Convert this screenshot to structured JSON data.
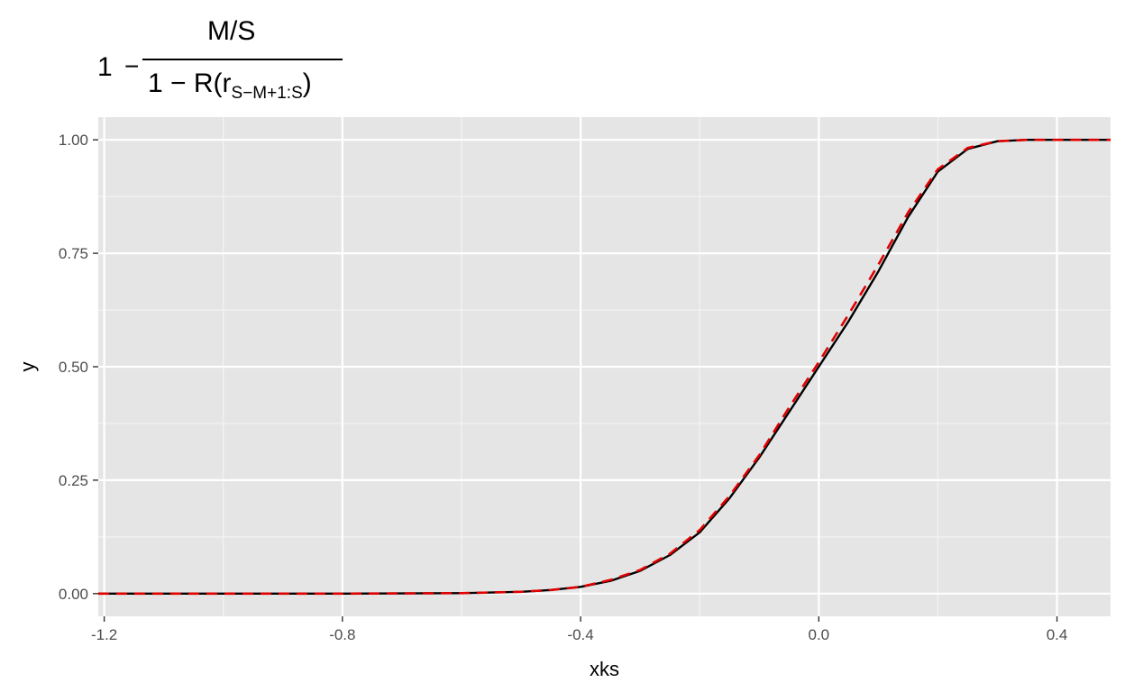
{
  "chart_data": {
    "type": "line",
    "title": {
      "one": "1",
      "minus": "−",
      "numerator": "M/S",
      "denominator_main": "1 − R(r",
      "denominator_sub": "S−M+1:S",
      "denominator_close": ")"
    },
    "xlabel": "xks",
    "ylabel": "y",
    "xlim": [
      -1.21,
      0.49
    ],
    "ylim": [
      -0.05,
      1.05
    ],
    "x_ticks": [
      -1.2,
      -0.8,
      -0.4,
      0.0,
      0.4
    ],
    "x_tick_labels": [
      "-1.2",
      "-0.8",
      "-0.4",
      "0.0",
      "0.4"
    ],
    "y_ticks": [
      0,
      0.25,
      0.5,
      0.75,
      1.0
    ],
    "y_tick_labels": [
      "0.00",
      "0.25",
      "0.50",
      "0.75",
      "1.00"
    ],
    "grid": true,
    "legend": "none",
    "x": [
      -1.21,
      -0.8,
      -0.6,
      -0.5,
      -0.45,
      -0.4,
      -0.35,
      -0.3,
      -0.25,
      -0.2,
      -0.15,
      -0.1,
      -0.05,
      0.0,
      0.05,
      0.1,
      0.15,
      0.2,
      0.25,
      0.3,
      0.35,
      0.4,
      0.49
    ],
    "series": [
      {
        "color": "#000000",
        "style": "solid",
        "values": [
          0.0,
          0.0,
          0.001,
          0.004,
          0.008,
          0.015,
          0.028,
          0.05,
          0.085,
          0.135,
          0.21,
          0.3,
          0.4,
          0.5,
          0.6,
          0.71,
          0.83,
          0.93,
          0.98,
          0.997,
          1.0,
          1.0,
          1.0
        ]
      },
      {
        "color": "#e00000",
        "style": "dashed",
        "values": [
          0.0,
          0.0,
          0.001,
          0.004,
          0.008,
          0.015,
          0.03,
          0.052,
          0.088,
          0.14,
          0.215,
          0.305,
          0.41,
          0.51,
          0.615,
          0.725,
          0.84,
          0.935,
          0.982,
          0.997,
          1.0,
          1.0,
          1.0
        ]
      }
    ]
  }
}
